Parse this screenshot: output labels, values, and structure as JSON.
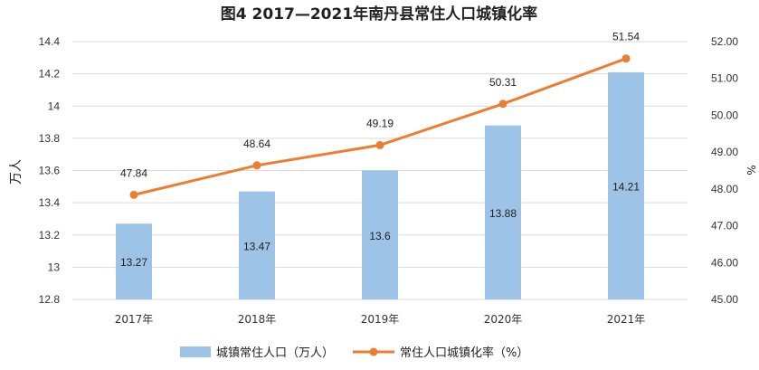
{
  "chart_data": {
    "type": "bar",
    "title": "图4 2017—2021年南丹县常住人口城镇化率",
    "categories": [
      "2017年",
      "2018年",
      "2019年",
      "2020年",
      "2021年"
    ],
    "series": [
      {
        "name": "城镇常住人口（万人）",
        "chart_type": "bar",
        "axis": "left",
        "values": [
          13.27,
          13.47,
          13.6,
          13.88,
          14.21
        ],
        "value_labels": [
          "13.27",
          "13.47",
          "13.6",
          "13.88",
          "14.21"
        ],
        "color": "#9dc3e6"
      },
      {
        "name": "常住人口城镇化率（%）",
        "chart_type": "line",
        "axis": "right",
        "values": [
          47.84,
          48.64,
          49.19,
          50.31,
          51.54
        ],
        "value_labels": [
          "47.84",
          "48.64",
          "49.19",
          "50.31",
          "51.54"
        ],
        "color": "#ed7d31"
      }
    ],
    "ylabel": "万人",
    "y2label": "%",
    "ylim": [
      12.8,
      14.4
    ],
    "yticks": [
      12.8,
      13,
      13.2,
      13.4,
      13.6,
      13.8,
      14,
      14.2,
      14.4
    ],
    "ytick_labels": [
      "12.8",
      "13",
      "13.2",
      "13.4",
      "13.6",
      "13.8",
      "14",
      "14.2",
      "14.4"
    ],
    "y2lim": [
      45,
      52
    ],
    "y2ticks": [
      45,
      46,
      47,
      48,
      49,
      50,
      51,
      52
    ],
    "y2tick_labels": [
      "45.00",
      "46.00",
      "47.00",
      "48.00",
      "49.00",
      "50.00",
      "51.00",
      "52.00"
    ],
    "grid": true,
    "legend_position": "bottom"
  }
}
